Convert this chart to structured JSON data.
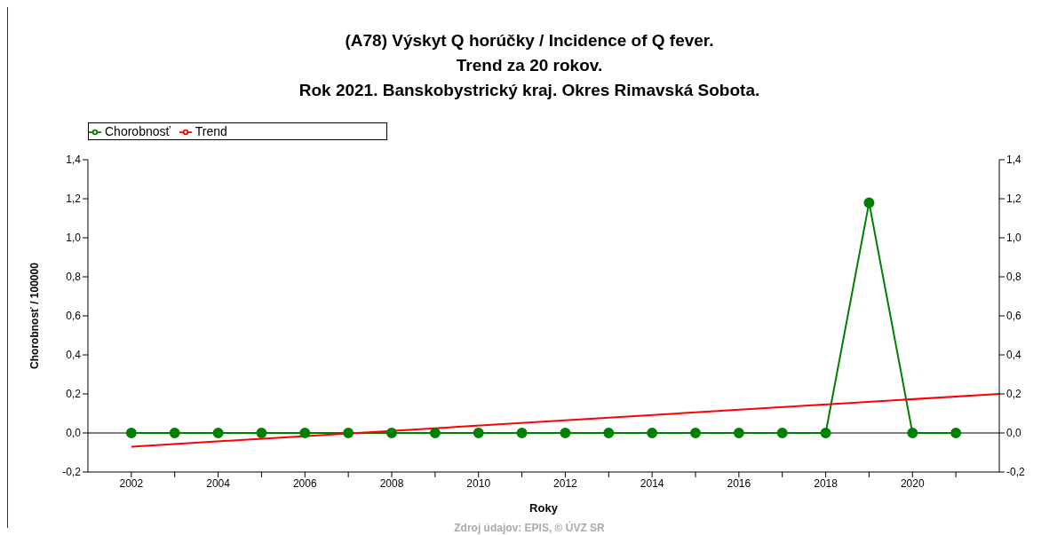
{
  "chart_data": {
    "type": "line",
    "title": "(A78) Výskyt Q horúčky / Incidence of Q fever.\nTrend za 20 rokov.\nRok 2021. Banskobystrický kraj. Okres Rimavská Sobota.",
    "xlabel": "Roky",
    "ylabel": "Chorobnosť / 100000",
    "annotations": [
      "Zdroj údajov: EPIS, © ÚVZ SR"
    ],
    "series": [
      {
        "name": "Chorobnosť",
        "color": "#008000",
        "marker": "circle",
        "x": [
          2002,
          2003,
          2004,
          2005,
          2006,
          2007,
          2008,
          2009,
          2010,
          2011,
          2012,
          2013,
          2014,
          2015,
          2016,
          2017,
          2018,
          2019,
          2020,
          2021
        ],
        "values": [
          0,
          0,
          0,
          0,
          0,
          0,
          0,
          0,
          0,
          0,
          0,
          0,
          0,
          0,
          0,
          0,
          0,
          1.18,
          0,
          0
        ]
      },
      {
        "name": "Trend",
        "color": "#ff0000",
        "marker": "none",
        "x": [
          2002,
          2022
        ],
        "values": [
          -0.07,
          0.2
        ]
      }
    ],
    "xlim": [
      2001,
      2022
    ],
    "xticks": [
      2002,
      {
        "value": 2003,
        "label": null
      },
      2004,
      {
        "value": 2005,
        "label": null
      },
      2006,
      {
        "value": 2007,
        "label": null
      },
      2008,
      {
        "value": 2009,
        "label": null
      },
      2010,
      {
        "value": 2011,
        "label": null
      },
      2012,
      {
        "value": 2013,
        "label": null
      },
      2014,
      {
        "value": 2015,
        "label": null
      },
      2016,
      {
        "value": 2017,
        "label": null
      },
      2018,
      {
        "value": 2019,
        "label": null
      },
      2020,
      {
        "value": 2021,
        "label": null
      }
    ],
    "ylim": [
      -0.2,
      1.4
    ],
    "yticks": [
      {
        "value": -0.2,
        "label": "-0,2"
      },
      {
        "value": 0,
        "label": "0,0"
      },
      {
        "value": 0.2,
        "label": "0,2"
      },
      {
        "value": 0.4,
        "label": "0,4"
      },
      {
        "value": 0.6,
        "label": "0,6"
      },
      {
        "value": 0.8,
        "label": "0,8"
      },
      {
        "value": 1,
        "label": "1,0"
      },
      {
        "value": 1.2,
        "label": "1,2"
      },
      {
        "value": 1.4,
        "label": "1,4"
      }
    ],
    "y2lim": [
      -0.2,
      1.4
    ],
    "y2ticks": [
      {
        "value": -0.2,
        "label": "-0,2"
      },
      {
        "value": 0,
        "label": "0,0"
      },
      {
        "value": 0.2,
        "label": "0,2"
      },
      {
        "value": 0.4,
        "label": "0,4"
      },
      {
        "value": 0.6,
        "label": "0,6"
      },
      {
        "value": 0.8,
        "label": "0,8"
      },
      {
        "value": 1,
        "label": "1,0"
      },
      {
        "value": 1.2,
        "label": "1,2"
      },
      {
        "value": 1.4,
        "label": "1,4"
      }
    ],
    "ref_lines": [
      {
        "axis": "y",
        "value": 0,
        "color": "#000000"
      }
    ],
    "grid": false,
    "legend": "top left",
    "line_style": "solid"
  }
}
